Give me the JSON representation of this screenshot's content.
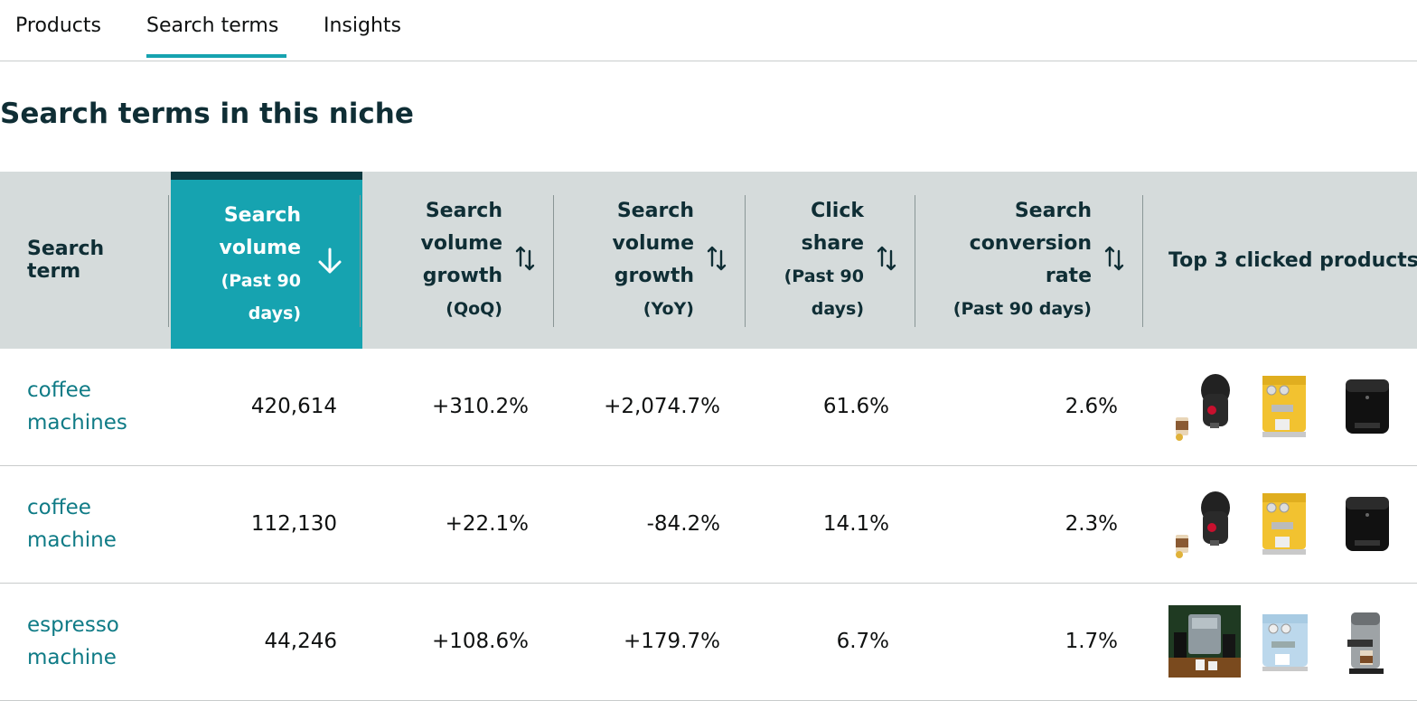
{
  "tabs": [
    {
      "label": "Products"
    },
    {
      "label": "Search terms",
      "active": true
    },
    {
      "label": "Insights"
    }
  ],
  "title": "Search terms in this niche",
  "columns": {
    "term": "Search term",
    "volume": {
      "lines": [
        "Search",
        "volume"
      ],
      "sub": [
        "(Past 90",
        "days)"
      ],
      "sort_icon": "arrow-down"
    },
    "qoq": {
      "lines": [
        "Search",
        "volume",
        "growth"
      ],
      "sub": [
        "(QoQ)"
      ],
      "sort_icon": "sort-updown"
    },
    "yoy": {
      "lines": [
        "Search",
        "volume",
        "growth"
      ],
      "sub": [
        "(YoY)"
      ],
      "sort_icon": "sort-updown"
    },
    "click": {
      "lines": [
        "Click",
        "share"
      ],
      "sub": [
        "(Past 90",
        "days)"
      ],
      "sort_icon": "sort-updown"
    },
    "conv": {
      "lines": [
        "Search",
        "conversion",
        "rate"
      ],
      "sub": [
        "(Past 90 days)"
      ],
      "sort_icon": "sort-updown"
    },
    "top3": "Top 3 clicked products"
  },
  "rows": [
    {
      "term": [
        "coffee",
        "machines"
      ],
      "volume": "420,614",
      "qoq": "+310.2%",
      "yoy": "+2,074.7%",
      "click": "61.6%",
      "conv": "2.6%",
      "products": [
        "pod-coffee-maker-image",
        "yellow-espresso-machine-image",
        "black-pod-machine-image"
      ]
    },
    {
      "term": [
        "coffee",
        "machine"
      ],
      "volume": "112,130",
      "qoq": "+22.1%",
      "yoy": "-84.2%",
      "click": "14.1%",
      "conv": "2.3%",
      "products": [
        "pod-coffee-maker-image",
        "yellow-espresso-machine-image",
        "black-pod-machine-image"
      ]
    },
    {
      "term": [
        "espresso",
        "machine"
      ],
      "volume": "44,246",
      "qoq": "+108.6%",
      "yoy": "+179.7%",
      "click": "6.7%",
      "conv": "1.7%",
      "products": [
        "espresso-machine-lifestyle-image",
        "blue-espresso-machine-image",
        "steel-espresso-machine-image"
      ]
    }
  ],
  "colors": {
    "accent": "#16a3b0",
    "header_bg": "#d5dbdb",
    "link": "#0f7b86",
    "title": "#0f2e35"
  }
}
